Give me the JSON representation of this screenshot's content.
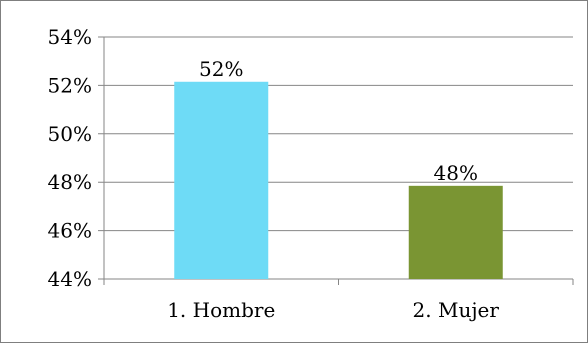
{
  "chart_data": {
    "type": "bar",
    "categories": [
      "1. Hombre",
      "2. Mujer"
    ],
    "values": [
      52.15,
      47.85
    ],
    "data_labels": [
      "52%",
      "48%"
    ],
    "colors": [
      "#6edbf6",
      "#7a9533"
    ],
    "ylim": [
      44,
      54
    ],
    "yticks": [
      44,
      46,
      48,
      50,
      52,
      54
    ],
    "ytick_labels": [
      "44%",
      "46%",
      "48%",
      "50%",
      "52%",
      "54%"
    ],
    "grid": true,
    "legend": "none"
  }
}
